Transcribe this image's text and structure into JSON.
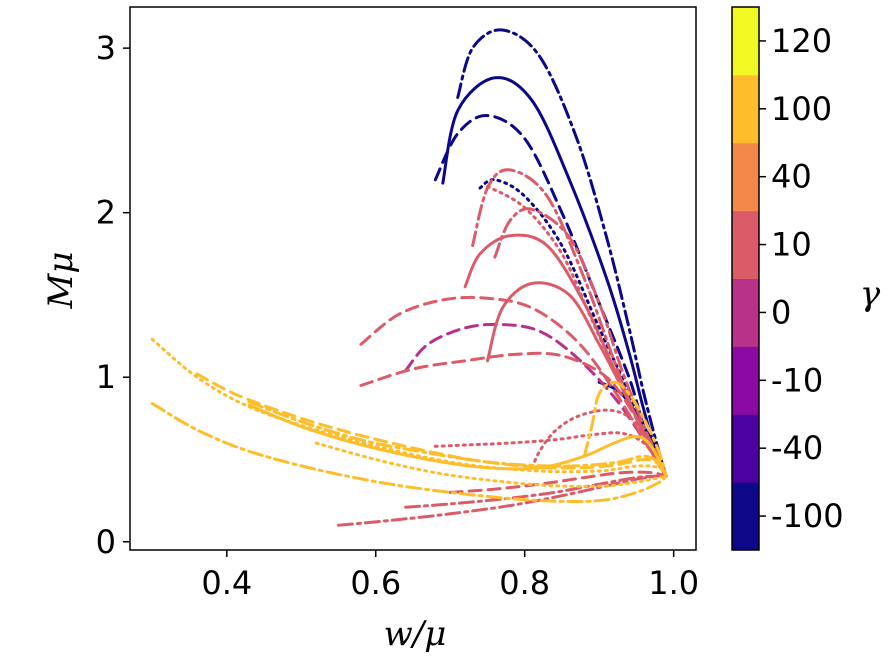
{
  "chart_data": {
    "type": "line",
    "title": "",
    "xlabel": "w/μ",
    "ylabel": "Mμ",
    "xlim": [
      0.27,
      1.03
    ],
    "ylim": [
      -0.05,
      3.25
    ],
    "xticks": [
      0.4,
      0.6,
      0.8,
      1.0
    ],
    "xtick_labels": [
      "0.4",
      "0.6",
      "0.8",
      "1.0"
    ],
    "yticks": [
      0,
      1,
      2,
      3
    ],
    "ytick_labels": [
      "0",
      "1",
      "2",
      "3"
    ],
    "grid": false,
    "colorbar": {
      "label": "γ",
      "levels": [
        {
          "label": "-100",
          "color": "#0d0887"
        },
        {
          "label": "-40",
          "color": "#4c02a1"
        },
        {
          "label": "-10",
          "color": "#8b0aa5"
        },
        {
          "label": "0",
          "color": "#b83289"
        },
        {
          "label": "10",
          "color": "#db5c68"
        },
        {
          "label": "40",
          "color": "#f48849"
        },
        {
          "label": "100",
          "color": "#febd2a"
        },
        {
          "label": "120",
          "color": "#f0f921"
        }
      ]
    },
    "series": [
      {
        "name": "gamma -100 dash-dot",
        "color": "#0d0887",
        "dash": "14,5,3,5",
        "x": [
          0.71,
          0.73,
          0.77,
          0.82,
          0.87,
          0.91,
          0.94,
          0.96,
          0.98,
          0.99
        ],
        "y": [
          2.7,
          3.0,
          3.11,
          2.95,
          2.45,
          1.85,
          1.3,
          0.9,
          0.55,
          0.4
        ]
      },
      {
        "name": "gamma -100 solid",
        "color": "#0d0887",
        "dash": "",
        "x": [
          0.69,
          0.71,
          0.76,
          0.81,
          0.86,
          0.91,
          0.94,
          0.96,
          0.98,
          0.99
        ],
        "y": [
          2.18,
          2.62,
          2.82,
          2.68,
          2.2,
          1.6,
          1.15,
          0.8,
          0.5,
          0.4
        ]
      },
      {
        "name": "gamma -100 dashed",
        "color": "#0d0887",
        "dash": "12,7",
        "x": [
          0.68,
          0.71,
          0.75,
          0.8,
          0.85,
          0.9,
          0.94,
          0.96,
          0.98,
          0.99
        ],
        "y": [
          2.2,
          2.48,
          2.59,
          2.45,
          2.0,
          1.45,
          1.0,
          0.7,
          0.48,
          0.4
        ]
      },
      {
        "name": "gamma -100 dotted",
        "color": "#0d0887",
        "dash": "2,5",
        "x": [
          0.74,
          0.76,
          0.8,
          0.85,
          0.9,
          0.94,
          0.96,
          0.98,
          0.99
        ],
        "y": [
          2.15,
          2.2,
          2.1,
          1.8,
          1.3,
          0.9,
          0.65,
          0.48,
          0.4
        ]
      },
      {
        "name": "gamma -100 small",
        "color": "#0d0887",
        "dash": "",
        "x": [
          0.9,
          0.93,
          0.96,
          0.98,
          0.99
        ],
        "y": [
          0.97,
          0.9,
          0.7,
          0.5,
          0.4
        ]
      },
      {
        "name": "gamma 0 dashed",
        "color": "#b83289",
        "dash": "12,7",
        "x": [
          0.64,
          0.67,
          0.72,
          0.77,
          0.82,
          0.87,
          0.92,
          0.96,
          0.98,
          0.99
        ],
        "y": [
          1.04,
          1.2,
          1.3,
          1.32,
          1.28,
          1.12,
          0.88,
          0.62,
          0.47,
          0.4
        ]
      },
      {
        "name": "gamma 10 dash-dot high",
        "color": "#db5c68",
        "dash": "14,5,3,5",
        "x": [
          0.73,
          0.75,
          0.78,
          0.83,
          0.88,
          0.92,
          0.95,
          0.97,
          0.99
        ],
        "y": [
          1.8,
          2.15,
          2.26,
          2.1,
          1.6,
          1.1,
          0.75,
          0.55,
          0.4
        ]
      },
      {
        "name": "gamma 10 dash-dot mid",
        "color": "#db5c68",
        "dash": "14,5,3,5",
        "x": [
          0.76,
          0.78,
          0.81,
          0.86,
          0.9,
          0.93,
          0.96,
          0.98,
          0.99
        ],
        "y": [
          1.73,
          1.95,
          2.02,
          1.85,
          1.45,
          1.05,
          0.7,
          0.5,
          0.4
        ]
      },
      {
        "name": "gamma 10 solid",
        "color": "#db5c68",
        "dash": "",
        "x": [
          0.72,
          0.74,
          0.78,
          0.83,
          0.88,
          0.92,
          0.95,
          0.97,
          0.99
        ],
        "y": [
          1.55,
          1.75,
          1.86,
          1.8,
          1.45,
          1.05,
          0.75,
          0.55,
          0.4
        ]
      },
      {
        "name": "gamma 10 solid low",
        "color": "#db5c68",
        "dash": "",
        "x": [
          0.75,
          0.77,
          0.81,
          0.86,
          0.9,
          0.94,
          0.97,
          0.99
        ],
        "y": [
          1.1,
          1.42,
          1.57,
          1.5,
          1.2,
          0.85,
          0.57,
          0.4
        ]
      },
      {
        "name": "gamma 10 dashed upper",
        "color": "#db5c68",
        "dash": "12,7",
        "x": [
          0.58,
          0.63,
          0.69,
          0.75,
          0.81,
          0.87,
          0.92,
          0.96,
          0.98,
          0.99
        ],
        "y": [
          1.2,
          1.38,
          1.47,
          1.48,
          1.42,
          1.22,
          0.92,
          0.62,
          0.47,
          0.4
        ]
      },
      {
        "name": "gamma 10 dashed lower",
        "color": "#db5c68",
        "dash": "12,7",
        "x": [
          0.58,
          0.65,
          0.72,
          0.79,
          0.85,
          0.91,
          0.95,
          0.98,
          0.99
        ],
        "y": [
          0.95,
          1.05,
          1.1,
          1.14,
          1.13,
          1.0,
          0.75,
          0.52,
          0.4
        ]
      },
      {
        "name": "gamma 10 dotted",
        "color": "#db5c68",
        "dash": "2,5",
        "x": [
          0.75,
          0.8,
          0.85,
          0.89,
          0.93,
          0.96,
          0.98,
          0.99
        ],
        "y": [
          2.16,
          2.03,
          1.75,
          1.35,
          0.95,
          0.65,
          0.48,
          0.4
        ]
      },
      {
        "name": "gamma 10 dotted horizontal",
        "color": "#db5c68",
        "dash": "2,5",
        "x": [
          0.68,
          0.73,
          0.78,
          0.84,
          0.89,
          0.93,
          0.96,
          0.98,
          0.99
        ],
        "y": [
          0.58,
          0.59,
          0.6,
          0.62,
          0.65,
          0.66,
          0.6,
          0.48,
          0.4
        ]
      },
      {
        "name": "gamma 10 dotted curl",
        "color": "#db5c68",
        "dash": "2,5",
        "x": [
          0.81,
          0.82,
          0.84,
          0.87,
          0.91,
          0.94,
          0.96,
          0.98,
          0.99
        ],
        "y": [
          0.45,
          0.55,
          0.67,
          0.76,
          0.8,
          0.76,
          0.66,
          0.5,
          0.4
        ]
      },
      {
        "name": "gamma 10 dash-dot bottom",
        "color": "#db5c68",
        "dash": "14,5,3,5",
        "x": [
          0.55,
          0.62,
          0.7,
          0.78,
          0.85,
          0.91,
          0.95,
          0.98,
          0.99
        ],
        "y": [
          0.1,
          0.13,
          0.17,
          0.22,
          0.28,
          0.34,
          0.38,
          0.4,
          0.4
        ]
      },
      {
        "name": "gamma 10 dash-dot bottom 2",
        "color": "#db5c68",
        "dash": "14,5,3,5",
        "x": [
          0.64,
          0.7,
          0.77,
          0.84,
          0.9,
          0.95,
          0.98,
          0.99
        ],
        "y": [
          0.21,
          0.23,
          0.26,
          0.3,
          0.35,
          0.39,
          0.4,
          0.4
        ]
      },
      {
        "name": "gamma 10 dashed bottom",
        "color": "#db5c68",
        "dash": "12,7",
        "x": [
          0.7,
          0.76,
          0.82,
          0.88,
          0.93,
          0.97,
          0.99
        ],
        "y": [
          0.3,
          0.32,
          0.35,
          0.39,
          0.42,
          0.42,
          0.4
        ]
      },
      {
        "name": "gamma 100 dotted top",
        "color": "#febd2a",
        "dash": "2,5",
        "x": [
          0.3,
          0.36,
          0.43,
          0.52,
          0.62,
          0.72,
          0.82,
          0.9,
          0.95,
          0.98,
          0.99
        ],
        "y": [
          1.23,
          1.0,
          0.82,
          0.68,
          0.56,
          0.47,
          0.43,
          0.43,
          0.46,
          0.45,
          0.4
        ]
      },
      {
        "name": "gamma 100 dashed",
        "color": "#febd2a",
        "dash": "12,7",
        "x": [
          0.36,
          0.41,
          0.48,
          0.56,
          0.65,
          0.74,
          0.83,
          0.91,
          0.96,
          0.98,
          0.99
        ],
        "y": [
          1.02,
          0.9,
          0.78,
          0.67,
          0.57,
          0.49,
          0.45,
          0.46,
          0.5,
          0.47,
          0.4
        ]
      },
      {
        "name": "gamma 100 dash-dot upper",
        "color": "#febd2a",
        "dash": "14,5,3,5",
        "x": [
          0.43,
          0.5,
          0.58,
          0.67,
          0.76,
          0.85,
          0.92,
          0.96,
          0.98,
          0.99
        ],
        "y": [
          0.85,
          0.73,
          0.62,
          0.54,
          0.48,
          0.46,
          0.48,
          0.52,
          0.48,
          0.4
        ]
      },
      {
        "name": "gamma 100 solid",
        "color": "#febd2a",
        "dash": "",
        "x": [
          0.43,
          0.5,
          0.58,
          0.67,
          0.75,
          0.82,
          0.88,
          0.92,
          0.95,
          0.97,
          0.99
        ],
        "y": [
          0.83,
          0.7,
          0.59,
          0.5,
          0.45,
          0.45,
          0.52,
          0.6,
          0.64,
          0.58,
          0.4
        ]
      },
      {
        "name": "gamma 100 dash-dot lower",
        "color": "#febd2a",
        "dash": "14,5,3,5",
        "x": [
          0.3,
          0.36,
          0.43,
          0.52,
          0.62,
          0.72,
          0.82,
          0.9,
          0.95,
          0.98,
          0.99
        ],
        "y": [
          0.84,
          0.68,
          0.55,
          0.44,
          0.35,
          0.29,
          0.25,
          0.25,
          0.3,
          0.36,
          0.4
        ]
      },
      {
        "name": "gamma 100 dotted lower",
        "color": "#febd2a",
        "dash": "2,5",
        "x": [
          0.52,
          0.6,
          0.68,
          0.76,
          0.84,
          0.91,
          0.96,
          0.99
        ],
        "y": [
          0.6,
          0.5,
          0.42,
          0.37,
          0.34,
          0.34,
          0.37,
          0.4
        ]
      },
      {
        "name": "gamma 100 dash-dot hook",
        "color": "#febd2a",
        "dash": "14,5,3,5",
        "x": [
          0.88,
          0.89,
          0.9,
          0.92,
          0.94,
          0.96,
          0.98,
          0.99
        ],
        "y": [
          0.52,
          0.7,
          0.9,
          0.97,
          0.9,
          0.75,
          0.55,
          0.4
        ]
      }
    ]
  }
}
